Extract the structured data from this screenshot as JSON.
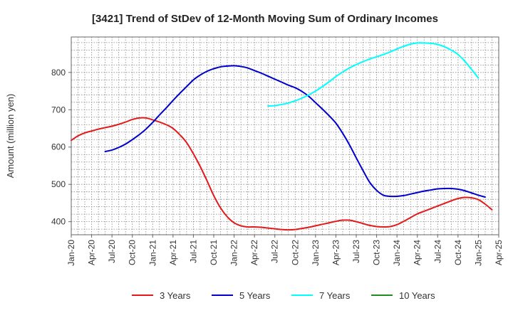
{
  "chart_data": {
    "type": "line",
    "title": "[3421]  Trend of StDev of 12-Month Moving Sum of Ordinary Incomes",
    "xlabel": "",
    "ylabel": "Amount (million yen)",
    "x_ticks": [
      "Jan-20",
      "Apr-20",
      "Jul-20",
      "Oct-20",
      "Jan-21",
      "Apr-21",
      "Jul-21",
      "Oct-21",
      "Jan-22",
      "Apr-22",
      "Jul-22",
      "Oct-22",
      "Jan-23",
      "Apr-23",
      "Jul-23",
      "Oct-23",
      "Jan-24",
      "Apr-24",
      "Jul-24",
      "Oct-24",
      "Jan-25",
      "Apr-25"
    ],
    "y_ticks": [
      "400",
      "500",
      "600",
      "700",
      "800"
    ],
    "ylim": [
      365,
      895
    ],
    "grid": true,
    "legend_position": "bottom",
    "series": [
      {
        "name": "3 Years",
        "color": "#e31a1c",
        "points": [
          [
            "2020-01",
            618
          ],
          [
            "2020-02",
            630
          ],
          [
            "2020-03",
            638
          ],
          [
            "2020-04",
            643
          ],
          [
            "2020-05",
            648
          ],
          [
            "2020-06",
            652
          ],
          [
            "2020-07",
            656
          ],
          [
            "2020-08",
            661
          ],
          [
            "2020-09",
            667
          ],
          [
            "2020-10",
            674
          ],
          [
            "2020-11",
            678
          ],
          [
            "2020-12",
            678
          ],
          [
            "2021-01",
            673
          ],
          [
            "2021-02",
            667
          ],
          [
            "2021-03",
            660
          ],
          [
            "2021-04",
            650
          ],
          [
            "2021-05",
            633
          ],
          [
            "2021-06",
            612
          ],
          [
            "2021-07",
            582
          ],
          [
            "2021-08",
            548
          ],
          [
            "2021-09",
            510
          ],
          [
            "2021-10",
            470
          ],
          [
            "2021-11",
            437
          ],
          [
            "2021-12",
            413
          ],
          [
            "2022-01",
            397
          ],
          [
            "2022-02",
            389
          ],
          [
            "2022-03",
            386
          ],
          [
            "2022-04",
            386
          ],
          [
            "2022-05",
            385
          ],
          [
            "2022-06",
            383
          ],
          [
            "2022-07",
            381
          ],
          [
            "2022-08",
            379
          ],
          [
            "2022-09",
            378
          ],
          [
            "2022-10",
            379
          ],
          [
            "2022-11",
            382
          ],
          [
            "2022-12",
            385
          ],
          [
            "2023-01",
            389
          ],
          [
            "2023-02",
            393
          ],
          [
            "2023-03",
            397
          ],
          [
            "2023-04",
            401
          ],
          [
            "2023-05",
            404
          ],
          [
            "2023-06",
            404
          ],
          [
            "2023-07",
            400
          ],
          [
            "2023-08",
            395
          ],
          [
            "2023-09",
            390
          ],
          [
            "2023-10",
            387
          ],
          [
            "2023-11",
            386
          ],
          [
            "2023-12",
            387
          ],
          [
            "2024-01",
            392
          ],
          [
            "2024-02",
            401
          ],
          [
            "2024-03",
            411
          ],
          [
            "2024-04",
            421
          ],
          [
            "2024-05",
            428
          ],
          [
            "2024-06",
            435
          ],
          [
            "2024-07",
            442
          ],
          [
            "2024-08",
            449
          ],
          [
            "2024-09",
            456
          ],
          [
            "2024-10",
            462
          ],
          [
            "2024-11",
            465
          ],
          [
            "2024-12",
            464
          ],
          [
            "2025-01",
            459
          ],
          [
            "2025-02",
            447
          ],
          [
            "2025-03",
            432
          ]
        ]
      },
      {
        "name": "5 Years",
        "color": "#0000cc",
        "points": [
          [
            "2020-06",
            588
          ],
          [
            "2020-07",
            592
          ],
          [
            "2020-08",
            599
          ],
          [
            "2020-09",
            608
          ],
          [
            "2020-10",
            620
          ],
          [
            "2020-11",
            633
          ],
          [
            "2020-12",
            648
          ],
          [
            "2021-01",
            666
          ],
          [
            "2021-02",
            686
          ],
          [
            "2021-03",
            705
          ],
          [
            "2021-04",
            725
          ],
          [
            "2021-05",
            744
          ],
          [
            "2021-06",
            762
          ],
          [
            "2021-07",
            780
          ],
          [
            "2021-08",
            793
          ],
          [
            "2021-09",
            803
          ],
          [
            "2021-10",
            810
          ],
          [
            "2021-11",
            815
          ],
          [
            "2021-12",
            817
          ],
          [
            "2022-01",
            818
          ],
          [
            "2022-02",
            816
          ],
          [
            "2022-03",
            812
          ],
          [
            "2022-04",
            805
          ],
          [
            "2022-05",
            798
          ],
          [
            "2022-06",
            790
          ],
          [
            "2022-07",
            782
          ],
          [
            "2022-08",
            774
          ],
          [
            "2022-09",
            766
          ],
          [
            "2022-10",
            759
          ],
          [
            "2022-11",
            749
          ],
          [
            "2022-12",
            736
          ],
          [
            "2023-01",
            719
          ],
          [
            "2023-02",
            702
          ],
          [
            "2023-03",
            684
          ],
          [
            "2023-04",
            664
          ],
          [
            "2023-05",
            637
          ],
          [
            "2023-06",
            606
          ],
          [
            "2023-07",
            571
          ],
          [
            "2023-08",
            537
          ],
          [
            "2023-09",
            505
          ],
          [
            "2023-10",
            484
          ],
          [
            "2023-11",
            471
          ],
          [
            "2023-12",
            468
          ],
          [
            "2024-01",
            468
          ],
          [
            "2024-02",
            470
          ],
          [
            "2024-03",
            474
          ],
          [
            "2024-04",
            478
          ],
          [
            "2024-05",
            482
          ],
          [
            "2024-06",
            485
          ],
          [
            "2024-07",
            488
          ],
          [
            "2024-08",
            489
          ],
          [
            "2024-09",
            489
          ],
          [
            "2024-10",
            487
          ],
          [
            "2024-11",
            483
          ],
          [
            "2024-12",
            477
          ],
          [
            "2025-01",
            471
          ],
          [
            "2025-02",
            466
          ]
        ]
      },
      {
        "name": "7 Years",
        "color": "#00ffff",
        "points": [
          [
            "2022-06",
            710
          ],
          [
            "2022-07",
            711
          ],
          [
            "2022-08",
            714
          ],
          [
            "2022-09",
            718
          ],
          [
            "2022-10",
            724
          ],
          [
            "2022-11",
            731
          ],
          [
            "2022-12",
            740
          ],
          [
            "2023-01",
            750
          ],
          [
            "2023-02",
            762
          ],
          [
            "2023-03",
            775
          ],
          [
            "2023-04",
            789
          ],
          [
            "2023-05",
            801
          ],
          [
            "2023-06",
            812
          ],
          [
            "2023-07",
            821
          ],
          [
            "2023-08",
            829
          ],
          [
            "2023-09",
            836
          ],
          [
            "2023-10",
            842
          ],
          [
            "2023-11",
            848
          ],
          [
            "2023-12",
            855
          ],
          [
            "2024-01",
            863
          ],
          [
            "2024-02",
            870
          ],
          [
            "2024-03",
            876
          ],
          [
            "2024-04",
            879
          ],
          [
            "2024-05",
            879
          ],
          [
            "2024-06",
            878
          ],
          [
            "2024-07",
            875
          ],
          [
            "2024-08",
            869
          ],
          [
            "2024-09",
            860
          ],
          [
            "2024-10",
            848
          ],
          [
            "2024-11",
            830
          ],
          [
            "2024-12",
            808
          ],
          [
            "2025-01",
            785
          ]
        ]
      },
      {
        "name": "10 Years",
        "color": "#228b22",
        "points": []
      }
    ]
  }
}
